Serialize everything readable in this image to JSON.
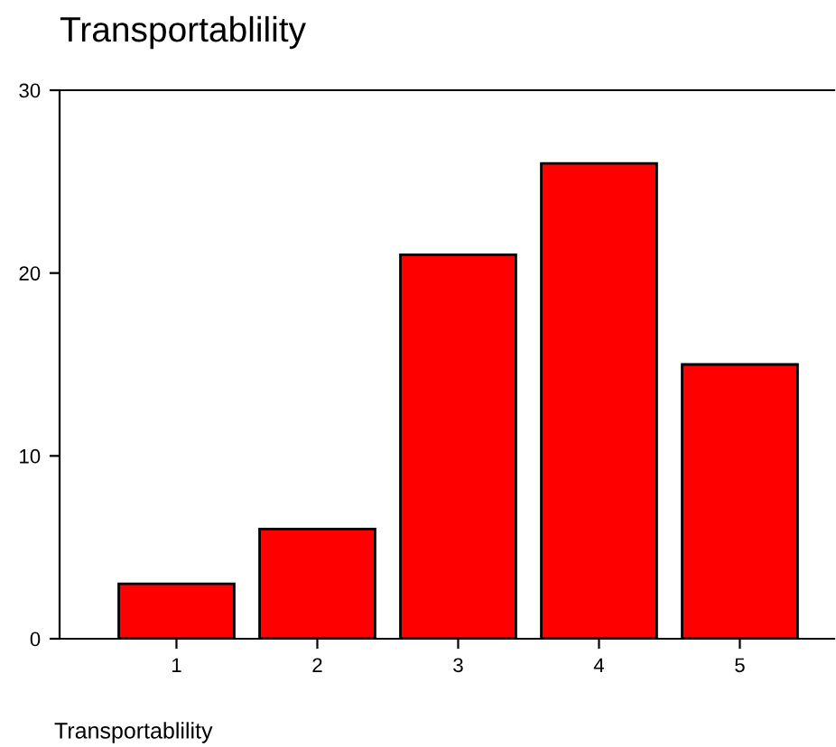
{
  "chart_data": {
    "type": "bar",
    "title": "Transportablility",
    "xlabel": "Transportablility",
    "categories": [
      "1",
      "2",
      "3",
      "4",
      "5"
    ],
    "values": [
      3,
      6,
      21,
      26,
      15
    ],
    "color": "#ff0000",
    "ylim": [
      0,
      30
    ],
    "yticks": [
      0,
      10,
      20,
      30
    ],
    "grid": false,
    "legend": false
  }
}
